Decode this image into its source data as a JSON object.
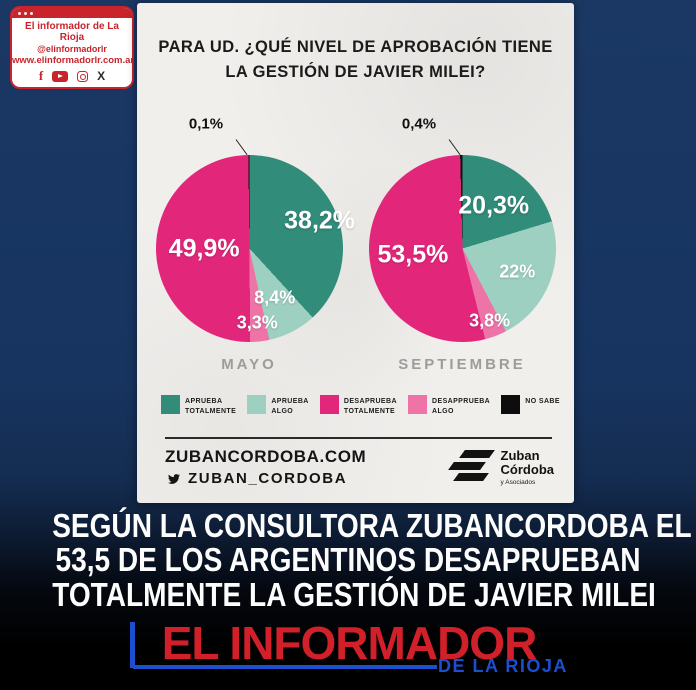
{
  "badge": {
    "title": "El informador de La Rioja",
    "handle": "@elinformadorlr",
    "website": "www.elinformadorlr.com.ar",
    "icons": [
      "facebook-icon",
      "youtube-icon",
      "instagram-icon",
      "x-icon"
    ]
  },
  "card": {
    "title_lines": [
      "PARA UD. ¿QUÉ NIVEL DE APROBACIÓN TIENE",
      "LA GESTIÓN DE JAVIER MILEI?"
    ],
    "footer": {
      "website": "ZUBANCORDOBA.COM",
      "twitter_handle": "ZUBAN_CORDOBA",
      "brand_line1": "Zuban",
      "brand_line2": "Córdoba",
      "brand_sub": "y Asociados"
    }
  },
  "chart_data": {
    "type": "pie",
    "title": "PARA UD. ¿QUÉ NIVEL DE APROBACIÓN TIENE LA GESTIÓN DE JAVIER MILEI?",
    "legend_position": "bottom",
    "categories": [
      "APRUEBA TOTALMENTE",
      "APRUEBA ALGO",
      "DESAPRUEBA TOTALMENTE",
      "DESAPPRUEBA ALGO",
      "NO SABE"
    ],
    "legend_lines": [
      [
        "APRUEBA",
        "TOTALMENTE"
      ],
      [
        "APRUEBA",
        "ALGO"
      ],
      [
        "DESAPRUEBA",
        "TOTALMENTE"
      ],
      [
        "DESAPPRUEBA",
        "ALGO"
      ],
      [
        "NO SABE"
      ]
    ],
    "colors": [
      "#318c7a",
      "#9ed0c1",
      "#e2277b",
      "#ee74a8",
      "#0d0d0d"
    ],
    "draw_order": [
      0,
      1,
      3,
      2,
      4
    ],
    "series": [
      {
        "name": "MAYO",
        "values": [
          38.2,
          8.4,
          49.9,
          3.3,
          0.1
        ],
        "display_labels": [
          "38,2%",
          "8,4%",
          "49,9%",
          "3,3%",
          "0,1%"
        ]
      },
      {
        "name": "SEPTIEMBRE",
        "values": [
          20.3,
          22,
          53.5,
          3.8,
          0.4
        ],
        "display_labels": [
          "20,3%",
          "22%",
          "53,5%",
          "3,8%",
          "0,4%"
        ]
      }
    ]
  },
  "headline": {
    "lines": [
      "SEGÚN LA CONSULTORA ZUBANCORDOBA EL",
      "53,5 DE LOS ARGENTINOS DESAPRUEBAN",
      "TOTALMENTE LA GESTIÓN DE JAVIER MILEI"
    ]
  },
  "brand_footer": {
    "title": "EL INFORMADOR",
    "subtitle": "DE LA RIOJA"
  },
  "colors": {
    "background_navy": "#17345e",
    "card_background": "#f1efec",
    "accent_red": "#d2202a",
    "accent_blue": "#1b4fd0"
  }
}
